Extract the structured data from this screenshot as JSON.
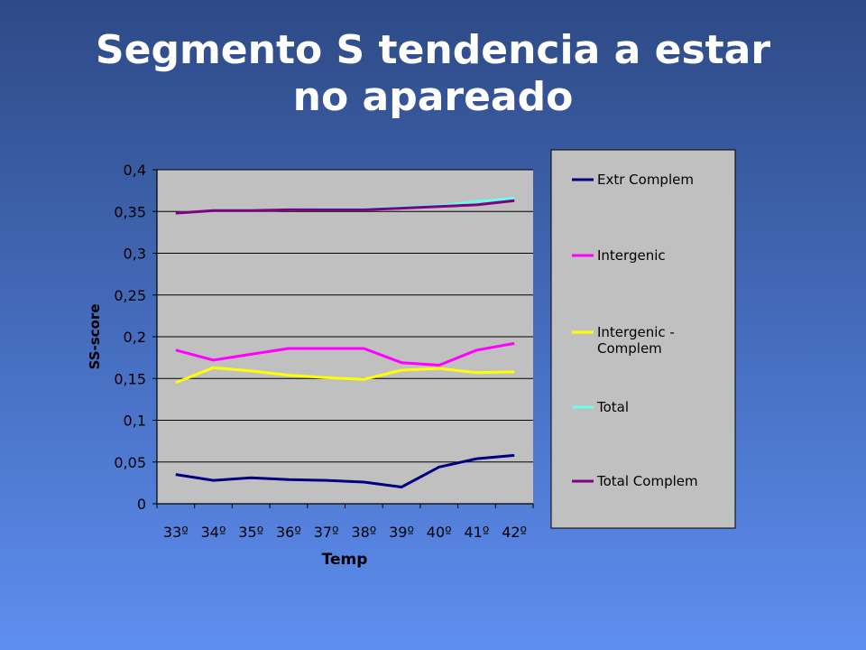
{
  "slide": {
    "title_line1": "Segmento S tendencia a estar",
    "title_line2": "no apareado"
  },
  "chart_data": {
    "type": "line",
    "categories": [
      "33º",
      "34º",
      "35º",
      "36º",
      "37º",
      "38º",
      "39º",
      "40º",
      "41º",
      "42º"
    ],
    "xlabel": "Temp",
    "ylabel": "SS-score",
    "ylim": [
      0,
      0.4
    ],
    "yticks": [
      "0",
      "0,05",
      "0,1",
      "0,15",
      "0,2",
      "0,25",
      "0,3",
      "0,35",
      "0,4"
    ],
    "grid": "horizontal",
    "legend_position": "right",
    "plot_background": "#c0c0c0",
    "series": [
      {
        "name": "Extr Complem",
        "color": "#000080",
        "values": [
          0.035,
          0.028,
          0.031,
          0.029,
          0.028,
          0.026,
          0.02,
          0.044,
          0.054,
          0.058
        ]
      },
      {
        "name": "Intergenic",
        "color": "#ff00ff",
        "values": [
          0.184,
          0.172,
          0.179,
          0.186,
          0.186,
          0.186,
          0.169,
          0.166,
          0.184,
          0.192
        ]
      },
      {
        "name": "Intergenic - Complem",
        "color": "#ffff00",
        "values": [
          0.145,
          0.163,
          0.159,
          0.154,
          0.151,
          0.149,
          0.16,
          0.162,
          0.157,
          0.158
        ]
      },
      {
        "name": "Total",
        "color": "#66ffee",
        "values": [
          0.348,
          0.351,
          0.351,
          0.352,
          0.353,
          0.353,
          0.355,
          0.357,
          0.362,
          0.366
        ]
      },
      {
        "name": "Total Complem",
        "color": "#800080",
        "values": [
          0.348,
          0.351,
          0.351,
          0.352,
          0.352,
          0.352,
          0.354,
          0.356,
          0.358,
          0.363
        ]
      }
    ]
  }
}
